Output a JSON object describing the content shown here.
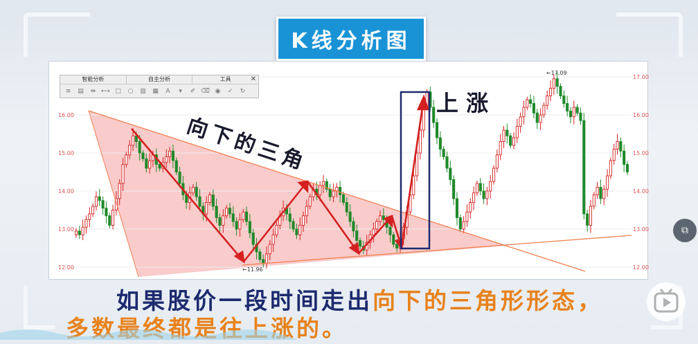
{
  "title": "K线分析图",
  "toolbar": {
    "tabs": [
      "智能分析",
      "自主分析",
      "工具"
    ],
    "close": "✕",
    "icons": [
      "≡",
      "▤",
      "⇹",
      "⟷",
      "□",
      "○",
      "▥",
      "▦",
      "A",
      "▾",
      "✐",
      "⌫",
      "◉",
      "✓",
      "↻"
    ]
  },
  "annotations": {
    "triangle": "向下的三角",
    "rise": "上 涨",
    "low_label": "←11.96",
    "high_label": "←17.09"
  },
  "caption": {
    "line1_a": "如果股价一段时间走出",
    "line1_b": "向下的三角形形态，",
    "line2": "多数最终都是往上涨的。"
  },
  "colors": {
    "up": "#d42020",
    "down": "#1f8a2a",
    "triangle_fill": "#f4a0a0",
    "trendline": "#f08050",
    "tick_text": "#e05050"
  },
  "chart_data": {
    "type": "candlestick",
    "title": "",
    "ylim": [
      11.9,
      17.2
    ],
    "y_ticks": [
      12.0,
      13.0,
      14.0,
      15.0,
      16.0,
      17.0
    ],
    "y_tick_labels_left": [
      "12.00",
      "13.00",
      "14.00",
      "15.00",
      "16.00"
    ],
    "y_tick_labels_right": [
      "12.00",
      "13.00",
      "14.00",
      "15.00",
      "16.00",
      "17.00"
    ],
    "low_annotation": 11.96,
    "high_annotation": 17.09,
    "closes": [
      12.95,
      12.85,
      13.05,
      13.25,
      13.4,
      13.6,
      13.85,
      13.75,
      13.55,
      13.35,
      13.1,
      13.5,
      13.8,
      14.2,
      14.7,
      14.95,
      15.2,
      15.45,
      15.3,
      15.0,
      14.85,
      14.6,
      14.8,
      14.95,
      14.7,
      14.6,
      14.75,
      14.9,
      15.05,
      14.8,
      14.5,
      14.2,
      13.9,
      13.7,
      13.95,
      14.1,
      13.85,
      13.6,
      13.4,
      13.7,
      13.9,
      13.6,
      13.3,
      13.1,
      13.35,
      13.55,
      13.4,
      13.2,
      13.0,
      13.25,
      13.45,
      13.2,
      12.9,
      12.6,
      12.4,
      12.2,
      12.1,
      12.35,
      12.6,
      12.85,
      13.1,
      13.35,
      13.55,
      13.4,
      13.2,
      13.0,
      12.85,
      13.1,
      13.35,
      13.6,
      13.85,
      14.05,
      13.9,
      14.15,
      14.25,
      14.05,
      13.85,
      14.0,
      14.1,
      13.9,
      13.7,
      13.45,
      13.2,
      12.95,
      12.7,
      12.55,
      12.45,
      12.65,
      12.85,
      13.0,
      13.2,
      13.35,
      13.25,
      13.05,
      12.85,
      12.6,
      12.5,
      12.75,
      13.05,
      13.45,
      13.9,
      14.4,
      15.0,
      15.6,
      16.2,
      16.6,
      16.2,
      15.8,
      15.4,
      15.1,
      14.9,
      14.6,
      14.3,
      13.8,
      13.3,
      13.0,
      13.2,
      13.45,
      13.7,
      13.95,
      14.2,
      14.0,
      13.8,
      14.0,
      14.25,
      14.6,
      14.95,
      15.3,
      15.6,
      15.45,
      15.2,
      15.4,
      15.7,
      15.95,
      16.2,
      16.4,
      16.3,
      16.05,
      15.8,
      16.0,
      16.25,
      16.5,
      16.7,
      16.95,
      16.75,
      16.5,
      16.3,
      16.1,
      15.95,
      16.2,
      16.05,
      15.85,
      13.4,
      13.1,
      13.6,
      13.9,
      14.1,
      13.8,
      14.05,
      14.4,
      14.8,
      15.1,
      15.3,
      15.05,
      14.7,
      14.5
    ]
  }
}
